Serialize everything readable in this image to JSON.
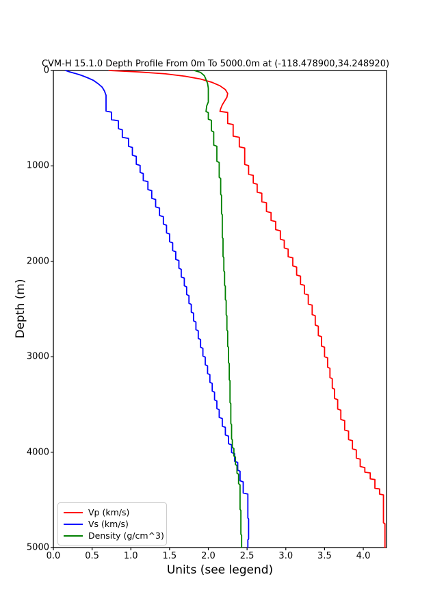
{
  "chart_data": {
    "type": "line",
    "title": "CVM-H 15.1.0 Depth Profile From 0m To 5000.0m at (-118.478900,34.248920)",
    "xlabel": "Units (see legend)",
    "ylabel": "Depth (m)",
    "xlim": [
      0.0,
      4.3
    ],
    "ylim": [
      0,
      5000
    ],
    "y_inverted": true,
    "grid": false,
    "legend_position": "lower left",
    "x_ticks": [
      "0.0",
      "0.5",
      "1.0",
      "1.5",
      "2.0",
      "2.5",
      "3.0",
      "3.5",
      "4.0"
    ],
    "x_tick_values": [
      0.0,
      0.5,
      1.0,
      1.5,
      2.0,
      2.5,
      3.0,
      3.5,
      4.0
    ],
    "y_ticks": [
      "0",
      "1000",
      "2000",
      "3000",
      "4000",
      "5000"
    ],
    "y_tick_values": [
      0,
      1000,
      2000,
      3000,
      4000,
      5000
    ],
    "axis_color": "#000000",
    "series": [
      {
        "name": "vp",
        "label": "Vp (km/s)",
        "color": "#ff0000",
        "points": [
          [
            0.72,
            0
          ],
          [
            1.1,
            15
          ],
          [
            1.45,
            35
          ],
          [
            1.7,
            60
          ],
          [
            1.9,
            90
          ],
          [
            2.05,
            125
          ],
          [
            2.15,
            160
          ],
          [
            2.22,
            200
          ],
          [
            2.25,
            240
          ],
          [
            2.24,
            280
          ],
          [
            2.21,
            320
          ],
          [
            2.18,
            360
          ],
          [
            2.16,
            400
          ],
          [
            2.15,
            428
          ],
          [
            2.25,
            440
          ],
          [
            2.25,
            555
          ],
          [
            2.32,
            567
          ],
          [
            2.32,
            688
          ],
          [
            2.4,
            700
          ],
          [
            2.4,
            800
          ],
          [
            2.47,
            812
          ],
          [
            2.47,
            985
          ],
          [
            2.52,
            997
          ],
          [
            2.52,
            1088
          ],
          [
            2.58,
            1100
          ],
          [
            2.58,
            1180
          ],
          [
            2.63,
            1192
          ],
          [
            2.63,
            1275
          ],
          [
            2.69,
            1287
          ],
          [
            2.69,
            1375
          ],
          [
            2.75,
            1387
          ],
          [
            2.75,
            1478
          ],
          [
            2.81,
            1490
          ],
          [
            2.81,
            1572
          ],
          [
            2.87,
            1584
          ],
          [
            2.87,
            1668
          ],
          [
            2.93,
            1680
          ],
          [
            2.93,
            1768
          ],
          [
            2.98,
            1780
          ],
          [
            2.98,
            1860
          ],
          [
            3.03,
            1872
          ],
          [
            3.03,
            1952
          ],
          [
            3.09,
            1964
          ],
          [
            3.09,
            2048
          ],
          [
            3.14,
            2060
          ],
          [
            3.14,
            2144
          ],
          [
            3.19,
            2156
          ],
          [
            3.19,
            2240
          ],
          [
            3.24,
            2252
          ],
          [
            3.24,
            2340
          ],
          [
            3.29,
            2352
          ],
          [
            3.29,
            2448
          ],
          [
            3.34,
            2460
          ],
          [
            3.34,
            2558
          ],
          [
            3.38,
            2570
          ],
          [
            3.38,
            2668
          ],
          [
            3.42,
            2680
          ],
          [
            3.42,
            2778
          ],
          [
            3.46,
            2790
          ],
          [
            3.46,
            2888
          ],
          [
            3.5,
            2900
          ],
          [
            3.5,
            3000
          ],
          [
            3.54,
            3012
          ],
          [
            3.54,
            3110
          ],
          [
            3.57,
            3122
          ],
          [
            3.57,
            3218
          ],
          [
            3.6,
            3230
          ],
          [
            3.6,
            3328
          ],
          [
            3.63,
            3340
          ],
          [
            3.63,
            3438
          ],
          [
            3.67,
            3450
          ],
          [
            3.67,
            3548
          ],
          [
            3.71,
            3560
          ],
          [
            3.71,
            3658
          ],
          [
            3.76,
            3670
          ],
          [
            3.76,
            3768
          ],
          [
            3.81,
            3780
          ],
          [
            3.81,
            3868
          ],
          [
            3.86,
            3880
          ],
          [
            3.86,
            3965
          ],
          [
            3.91,
            3977
          ],
          [
            3.91,
            4062
          ],
          [
            3.96,
            4074
          ],
          [
            3.96,
            4150
          ],
          [
            4.02,
            4162
          ],
          [
            4.02,
            4210
          ],
          [
            4.09,
            4218
          ],
          [
            4.09,
            4280
          ],
          [
            4.15,
            4288
          ],
          [
            4.15,
            4378
          ],
          [
            4.21,
            4386
          ],
          [
            4.21,
            4440
          ],
          [
            4.26,
            4448
          ],
          [
            4.26,
            4740
          ],
          [
            4.28,
            4750
          ],
          [
            4.28,
            5000
          ]
        ]
      },
      {
        "name": "vs",
        "label": "Vs (km/s)",
        "color": "#0000ff",
        "points": [
          [
            0.16,
            0
          ],
          [
            0.2,
            12
          ],
          [
            0.28,
            30
          ],
          [
            0.36,
            50
          ],
          [
            0.44,
            75
          ],
          [
            0.52,
            105
          ],
          [
            0.58,
            140
          ],
          [
            0.63,
            175
          ],
          [
            0.66,
            215
          ],
          [
            0.68,
            260
          ],
          [
            0.68,
            425
          ],
          [
            0.75,
            437
          ],
          [
            0.75,
            515
          ],
          [
            0.84,
            527
          ],
          [
            0.84,
            610
          ],
          [
            0.89,
            622
          ],
          [
            0.89,
            700
          ],
          [
            0.97,
            712
          ],
          [
            0.97,
            795
          ],
          [
            1.02,
            807
          ],
          [
            1.02,
            888
          ],
          [
            1.07,
            900
          ],
          [
            1.07,
            983
          ],
          [
            1.12,
            995
          ],
          [
            1.12,
            1068
          ],
          [
            1.16,
            1080
          ],
          [
            1.16,
            1153
          ],
          [
            1.22,
            1165
          ],
          [
            1.22,
            1248
          ],
          [
            1.27,
            1260
          ],
          [
            1.27,
            1340
          ],
          [
            1.32,
            1352
          ],
          [
            1.32,
            1430
          ],
          [
            1.37,
            1442
          ],
          [
            1.37,
            1520
          ],
          [
            1.42,
            1532
          ],
          [
            1.42,
            1610
          ],
          [
            1.46,
            1622
          ],
          [
            1.46,
            1702
          ],
          [
            1.5,
            1714
          ],
          [
            1.5,
            1795
          ],
          [
            1.54,
            1807
          ],
          [
            1.54,
            1888
          ],
          [
            1.58,
            1900
          ],
          [
            1.58,
            1980
          ],
          [
            1.62,
            1992
          ],
          [
            1.62,
            2072
          ],
          [
            1.65,
            2084
          ],
          [
            1.65,
            2164
          ],
          [
            1.69,
            2176
          ],
          [
            1.69,
            2256
          ],
          [
            1.72,
            2268
          ],
          [
            1.72,
            2348
          ],
          [
            1.75,
            2360
          ],
          [
            1.75,
            2440
          ],
          [
            1.78,
            2452
          ],
          [
            1.78,
            2532
          ],
          [
            1.81,
            2544
          ],
          [
            1.81,
            2624
          ],
          [
            1.84,
            2636
          ],
          [
            1.84,
            2716
          ],
          [
            1.87,
            2728
          ],
          [
            1.87,
            2808
          ],
          [
            1.9,
            2820
          ],
          [
            1.9,
            2900
          ],
          [
            1.93,
            2912
          ],
          [
            1.93,
            2992
          ],
          [
            1.96,
            3004
          ],
          [
            1.96,
            3084
          ],
          [
            1.99,
            3096
          ],
          [
            1.99,
            3176
          ],
          [
            2.02,
            3188
          ],
          [
            2.02,
            3268
          ],
          [
            2.05,
            3280
          ],
          [
            2.05,
            3360
          ],
          [
            2.08,
            3372
          ],
          [
            2.08,
            3452
          ],
          [
            2.11,
            3464
          ],
          [
            2.11,
            3544
          ],
          [
            2.14,
            3556
          ],
          [
            2.14,
            3636
          ],
          [
            2.18,
            3648
          ],
          [
            2.18,
            3728
          ],
          [
            2.22,
            3740
          ],
          [
            2.22,
            3820
          ],
          [
            2.26,
            3832
          ],
          [
            2.26,
            3912
          ],
          [
            2.3,
            3924
          ],
          [
            2.3,
            4004
          ],
          [
            2.34,
            4016
          ],
          [
            2.34,
            4096
          ],
          [
            2.38,
            4108
          ],
          [
            2.38,
            4188
          ],
          [
            2.41,
            4200
          ],
          [
            2.41,
            4300
          ],
          [
            2.45,
            4312
          ],
          [
            2.45,
            4428
          ],
          [
            2.51,
            4440
          ],
          [
            2.51,
            4690
          ],
          [
            2.52,
            4700
          ],
          [
            2.52,
            4910
          ],
          [
            2.51,
            4920
          ],
          [
            2.51,
            5000
          ]
        ]
      },
      {
        "name": "density",
        "label": "Density (g/cm^3)",
        "color": "#008000",
        "points": [
          [
            1.82,
            0
          ],
          [
            1.9,
            20
          ],
          [
            1.95,
            55
          ],
          [
            1.97,
            95
          ],
          [
            1.99,
            135
          ],
          [
            2.0,
            185
          ],
          [
            2.0,
            330
          ],
          [
            1.98,
            370
          ],
          [
            1.97,
            430
          ],
          [
            2.0,
            442
          ],
          [
            2.0,
            510
          ],
          [
            2.04,
            522
          ],
          [
            2.04,
            632
          ],
          [
            2.07,
            644
          ],
          [
            2.07,
            782
          ],
          [
            2.11,
            794
          ],
          [
            2.11,
            952
          ],
          [
            2.14,
            964
          ],
          [
            2.14,
            1120
          ],
          [
            2.16,
            1132
          ],
          [
            2.16,
            1298
          ],
          [
            2.17,
            1310
          ],
          [
            2.17,
            1500
          ],
          [
            2.18,
            1512
          ],
          [
            2.18,
            1750
          ],
          [
            2.19,
            1762
          ],
          [
            2.19,
            1950
          ],
          [
            2.2,
            1962
          ],
          [
            2.2,
            2100
          ],
          [
            2.21,
            2112
          ],
          [
            2.21,
            2250
          ],
          [
            2.22,
            2262
          ],
          [
            2.22,
            2400
          ],
          [
            2.23,
            2412
          ],
          [
            2.23,
            2560
          ],
          [
            2.24,
            2572
          ],
          [
            2.24,
            2720
          ],
          [
            2.25,
            2732
          ],
          [
            2.25,
            2890
          ],
          [
            2.26,
            2902
          ],
          [
            2.26,
            3060
          ],
          [
            2.27,
            3072
          ],
          [
            2.27,
            3240
          ],
          [
            2.28,
            3252
          ],
          [
            2.28,
            3480
          ],
          [
            2.29,
            3492
          ],
          [
            2.29,
            3700
          ],
          [
            2.3,
            3712
          ],
          [
            2.3,
            3860
          ],
          [
            2.31,
            3872
          ],
          [
            2.31,
            3950
          ],
          [
            2.33,
            3962
          ],
          [
            2.33,
            4040
          ],
          [
            2.35,
            4052
          ],
          [
            2.35,
            4130
          ],
          [
            2.37,
            4142
          ],
          [
            2.37,
            4220
          ],
          [
            2.39,
            4232
          ],
          [
            2.39,
            4330
          ],
          [
            2.41,
            4342
          ],
          [
            2.41,
            4600
          ],
          [
            2.42,
            4612
          ],
          [
            2.42,
            4860
          ],
          [
            2.43,
            4872
          ],
          [
            2.43,
            5000
          ]
        ]
      }
    ]
  }
}
